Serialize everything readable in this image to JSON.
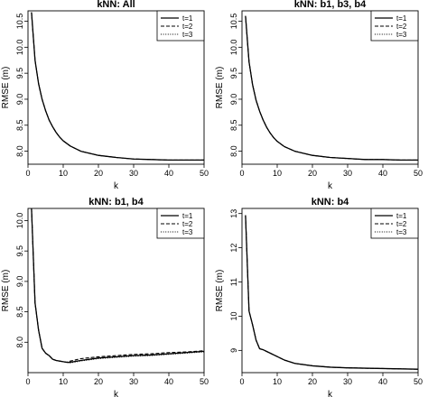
{
  "figure": {
    "panels": [
      {
        "title": "kNN: All",
        "xlabel": "k",
        "ylabel": "RMSE (m)"
      },
      {
        "title": "kNN: b1, b3, b4",
        "xlabel": "k",
        "ylabel": "RMSE (m)"
      },
      {
        "title": "kNN: b1, b4",
        "xlabel": "k",
        "ylabel": "RMSE (m)"
      },
      {
        "title": "kNN: b4",
        "xlabel": "k",
        "ylabel": "RMSE (m)"
      }
    ]
  },
  "chart_data": [
    {
      "type": "line",
      "title": "kNN: All",
      "xlabel": "k",
      "ylabel": "RMSE (m)",
      "xlim": [
        0,
        50
      ],
      "ylim": [
        7.75,
        10.7
      ],
      "xticks": [
        0,
        10,
        20,
        30,
        40,
        50
      ],
      "yticks": [
        8.0,
        8.5,
        9.0,
        9.5,
        10.0,
        10.5
      ],
      "ytick_labels": [
        "8.0",
        "8.5",
        "9.0",
        "9.5",
        "10.0",
        "10.5"
      ],
      "legend_position": "top-right",
      "x": [
        1,
        2,
        3,
        4,
        5,
        6,
        7,
        8,
        9,
        10,
        12,
        15,
        20,
        25,
        30,
        35,
        40,
        45,
        50
      ],
      "series": [
        {
          "name": "t=1",
          "style": "solid",
          "values": [
            10.67,
            9.75,
            9.3,
            9.0,
            8.78,
            8.6,
            8.47,
            8.36,
            8.27,
            8.2,
            8.1,
            8.0,
            7.92,
            7.88,
            7.85,
            7.84,
            7.83,
            7.83,
            7.83
          ]
        },
        {
          "name": "t=2",
          "style": "dashed",
          "values": [
            10.67,
            9.75,
            9.3,
            9.0,
            8.78,
            8.6,
            8.47,
            8.36,
            8.27,
            8.2,
            8.1,
            8.0,
            7.92,
            7.88,
            7.85,
            7.84,
            7.83,
            7.83,
            7.83
          ]
        },
        {
          "name": "t=3",
          "style": "dotted",
          "values": [
            10.67,
            9.75,
            9.3,
            9.0,
            8.78,
            8.6,
            8.47,
            8.36,
            8.27,
            8.2,
            8.1,
            8.0,
            7.92,
            7.88,
            7.85,
            7.84,
            7.83,
            7.83,
            7.83
          ]
        }
      ]
    },
    {
      "type": "line",
      "title": "kNN: b1, b3, b4",
      "xlabel": "k",
      "ylabel": "RMSE (m)",
      "xlim": [
        0,
        50
      ],
      "ylim": [
        7.75,
        10.7
      ],
      "xticks": [
        0,
        10,
        20,
        30,
        40,
        50
      ],
      "yticks": [
        8.0,
        8.5,
        9.0,
        9.5,
        10.0,
        10.5
      ],
      "ytick_labels": [
        "8.0",
        "8.5",
        "9.0",
        "9.5",
        "10.0",
        "10.5"
      ],
      "legend_position": "top-right",
      "x": [
        1,
        2,
        3,
        4,
        5,
        6,
        7,
        8,
        9,
        10,
        12,
        15,
        20,
        25,
        30,
        35,
        40,
        45,
        50
      ],
      "series": [
        {
          "name": "t=1",
          "style": "solid",
          "values": [
            10.6,
            9.72,
            9.28,
            8.98,
            8.77,
            8.6,
            8.46,
            8.35,
            8.26,
            8.19,
            8.09,
            8.0,
            7.92,
            7.88,
            7.86,
            7.84,
            7.84,
            7.83,
            7.83
          ]
        },
        {
          "name": "t=2",
          "style": "dashed",
          "values": [
            10.6,
            9.72,
            9.28,
            8.98,
            8.77,
            8.6,
            8.46,
            8.35,
            8.26,
            8.19,
            8.09,
            8.0,
            7.92,
            7.88,
            7.86,
            7.84,
            7.84,
            7.83,
            7.83
          ]
        },
        {
          "name": "t=3",
          "style": "dotted",
          "values": [
            10.6,
            9.72,
            9.28,
            8.98,
            8.77,
            8.6,
            8.46,
            8.35,
            8.26,
            8.19,
            8.09,
            8.0,
            7.92,
            7.88,
            7.86,
            7.84,
            7.84,
            7.83,
            7.83
          ]
        }
      ]
    },
    {
      "type": "line",
      "title": "kNN: b1, b4",
      "xlabel": "k",
      "ylabel": "RMSE (m)",
      "xlim": [
        0,
        50
      ],
      "ylim": [
        7.5,
        10.2
      ],
      "xticks": [
        0,
        10,
        20,
        30,
        40,
        50
      ],
      "yticks": [
        8.0,
        8.5,
        9.0,
        9.5,
        10.0
      ],
      "ytick_labels": [
        "8.0",
        "8.5",
        "9.0",
        "9.5",
        "10.0"
      ],
      "legend_position": "top-right",
      "x": [
        1,
        2,
        3,
        4,
        5,
        6,
        7,
        8,
        9,
        10,
        11,
        12,
        15,
        20,
        25,
        30,
        35,
        40,
        45,
        50
      ],
      "series": [
        {
          "name": "t=1",
          "style": "solid",
          "values": [
            10.2,
            8.65,
            8.2,
            7.9,
            7.82,
            7.78,
            7.72,
            7.7,
            7.69,
            7.68,
            7.67,
            7.67,
            7.7,
            7.74,
            7.76,
            7.78,
            7.79,
            7.81,
            7.83,
            7.85
          ]
        },
        {
          "name": "t=2",
          "style": "dashed",
          "values": [
            10.2,
            8.65,
            8.2,
            7.9,
            7.82,
            7.78,
            7.72,
            7.7,
            7.69,
            7.68,
            7.67,
            7.69,
            7.73,
            7.76,
            7.78,
            7.8,
            7.81,
            7.83,
            7.84,
            7.86
          ]
        },
        {
          "name": "t=3",
          "style": "dotted",
          "values": [
            10.2,
            8.65,
            8.2,
            7.9,
            7.82,
            7.78,
            7.72,
            7.7,
            7.69,
            7.68,
            7.67,
            7.66,
            7.69,
            7.73,
            7.75,
            7.77,
            7.78,
            7.8,
            7.82,
            7.84
          ]
        }
      ]
    },
    {
      "type": "line",
      "title": "kNN: b4",
      "xlabel": "k",
      "ylabel": "RMSE (m)",
      "xlim": [
        0,
        50
      ],
      "ylim": [
        8.35,
        13.15
      ],
      "xticks": [
        0,
        10,
        20,
        30,
        40,
        50
      ],
      "yticks": [
        9,
        10,
        11,
        12,
        13
      ],
      "ytick_labels": [
        "9",
        "10",
        "11",
        "12",
        "13"
      ],
      "legend_position": "top-right",
      "x": [
        1,
        2,
        3,
        4,
        5,
        6,
        7,
        8,
        10,
        12,
        15,
        20,
        25,
        30,
        35,
        40,
        45,
        50
      ],
      "series": [
        {
          "name": "t=1",
          "style": "solid",
          "values": [
            12.95,
            10.15,
            9.75,
            9.3,
            9.05,
            9.02,
            8.97,
            8.92,
            8.82,
            8.72,
            8.62,
            8.55,
            8.51,
            8.49,
            8.48,
            8.47,
            8.46,
            8.45
          ]
        },
        {
          "name": "t=2",
          "style": "dashed",
          "values": [
            12.95,
            10.15,
            9.75,
            9.3,
            9.05,
            9.02,
            8.97,
            8.92,
            8.82,
            8.72,
            8.62,
            8.55,
            8.51,
            8.49,
            8.48,
            8.47,
            8.46,
            8.45
          ]
        },
        {
          "name": "t=3",
          "style": "dotted",
          "values": [
            12.95,
            10.15,
            9.75,
            9.3,
            9.05,
            9.02,
            8.97,
            8.92,
            8.82,
            8.72,
            8.62,
            8.55,
            8.51,
            8.49,
            8.48,
            8.47,
            8.46,
            8.45
          ]
        }
      ]
    }
  ]
}
